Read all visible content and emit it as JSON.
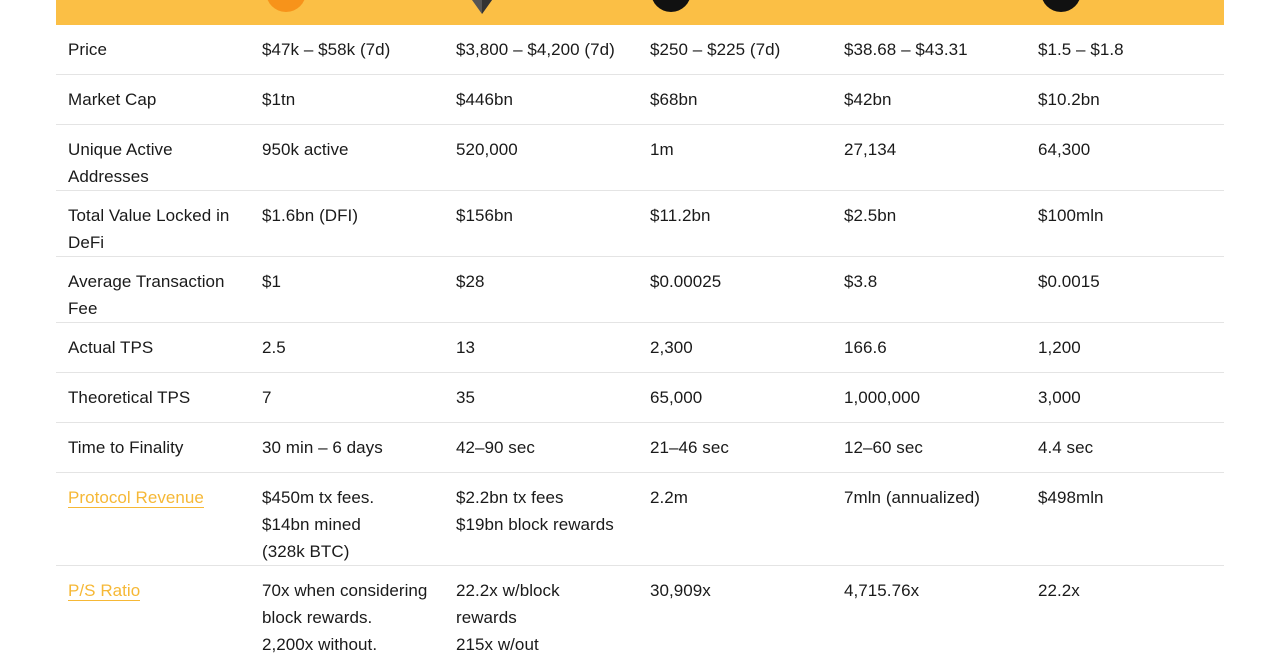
{
  "colors": {
    "header_band": "#fbbf45",
    "link": "#f6b836",
    "divider": "#e4e4e4"
  },
  "coins": [
    {
      "icon": "bitcoin-logo-icon",
      "color": "#f7931a"
    },
    {
      "icon": "ethereum-logo-icon",
      "color": "#343434"
    },
    {
      "icon": "solana-logo-icon",
      "color": "#111111"
    },
    {
      "icon": "polkadot-logo-icon",
      "color": "#e6007a"
    },
    {
      "icon": "algorand-logo-icon",
      "color": "#111111"
    }
  ],
  "rows": [
    {
      "label": "Price",
      "cells": [
        [
          "$47k – $58k (7d)"
        ],
        [
          "$3,800 – $4,200 (7d)"
        ],
        [
          "$250 – $225 (7d)"
        ],
        [
          "$38.68 – $43.31"
        ],
        [
          "$1.5 – $1.8"
        ]
      ]
    },
    {
      "label": "Market Cap",
      "cells": [
        [
          "$1tn"
        ],
        [
          "$446bn"
        ],
        [
          "$68bn"
        ],
        [
          "$42bn"
        ],
        [
          "$10.2bn"
        ]
      ]
    },
    {
      "label": "Unique Active Addresses",
      "cells": [
        [
          "950k active"
        ],
        [
          "520,000"
        ],
        [
          "1m"
        ],
        [
          "27,134"
        ],
        [
          "64,300"
        ]
      ]
    },
    {
      "label": "Total Value Locked in DeFi",
      "cells": [
        [
          "$1.6bn (DFI)"
        ],
        [
          "$156bn"
        ],
        [
          "$11.2bn"
        ],
        [
          "$2.5bn"
        ],
        [
          "$100mln"
        ]
      ]
    },
    {
      "label": "Average Transaction Fee",
      "cells": [
        [
          "$1"
        ],
        [
          "$28"
        ],
        [
          "$0.00025"
        ],
        [
          "$3.8"
        ],
        [
          "$0.0015"
        ]
      ]
    },
    {
      "label": "Actual TPS",
      "cells": [
        [
          "2.5"
        ],
        [
          "13"
        ],
        [
          "2,300"
        ],
        [
          "166.6"
        ],
        [
          "1,200"
        ]
      ]
    },
    {
      "label": "Theoretical TPS",
      "cells": [
        [
          "7"
        ],
        [
          "35"
        ],
        [
          "65,000"
        ],
        [
          "1,000,000"
        ],
        [
          "3,000"
        ]
      ]
    },
    {
      "label": "Time to Finality",
      "cells": [
        [
          "30 min – 6 days"
        ],
        [
          "42–90 sec"
        ],
        [
          "21–46 sec"
        ],
        [
          "12–60 sec"
        ],
        [
          "4.4 sec"
        ]
      ]
    },
    {
      "label": "Protocol Revenue",
      "cells": [
        [
          "$450m tx fees.",
          "$14bn mined",
          "(328k BTC)"
        ],
        [
          "$2.2bn tx fees",
          "$19bn block rewards"
        ],
        [
          "2.2m"
        ],
        [
          "7mln (annualized)"
        ],
        [
          "$498mln"
        ]
      ]
    },
    {
      "label": "P/S Ratio",
      "cells": [
        [
          "70x when considering",
          "block rewards.",
          "2,200x without."
        ],
        [
          "22.2x w/block",
          "rewards",
          "215x w/out"
        ],
        [
          "30,909x"
        ],
        [
          "4,715.76x"
        ],
        [
          "22.2x"
        ]
      ]
    }
  ]
}
